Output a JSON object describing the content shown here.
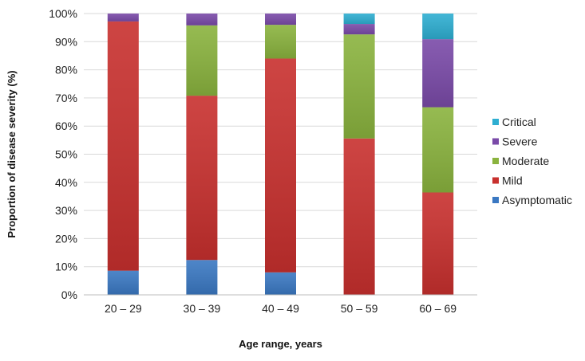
{
  "chart_data": {
    "type": "bar",
    "stacked": true,
    "percent": true,
    "categories": [
      "20 – 29",
      "30 – 39",
      "40 – 49",
      "50 – 59",
      "60 – 69"
    ],
    "series": [
      {
        "name": "Asymptomatic",
        "color": "#3a78c2",
        "values": [
          8.6,
          12.4,
          8.0,
          0.0,
          0.0
        ]
      },
      {
        "name": "Mild",
        "color": "#c8302e",
        "values": [
          88.6,
          58.4,
          76.0,
          55.6,
          36.4
        ]
      },
      {
        "name": "Moderate",
        "color": "#8ab33e",
        "values": [
          0.0,
          25.0,
          12.0,
          37.0,
          30.3
        ]
      },
      {
        "name": "Severe",
        "color": "#7a4aa8",
        "values": [
          2.8,
          4.2,
          4.0,
          3.7,
          24.2
        ]
      },
      {
        "name": "Critical",
        "color": "#2eaed1",
        "values": [
          0.0,
          0.0,
          0.0,
          3.7,
          9.1
        ]
      }
    ],
    "xlabel": "Age range, years",
    "ylabel": "Proportion of disease severity (%)",
    "ylim": [
      0,
      100
    ],
    "yticks": [
      "0%",
      "10%",
      "20%",
      "30%",
      "40%",
      "50%",
      "60%",
      "70%",
      "80%",
      "90%",
      "100%"
    ],
    "grid": true,
    "legend": {
      "position": "right",
      "order": [
        "Critical",
        "Severe",
        "Moderate",
        "Mild",
        "Asymptomatic"
      ]
    }
  }
}
